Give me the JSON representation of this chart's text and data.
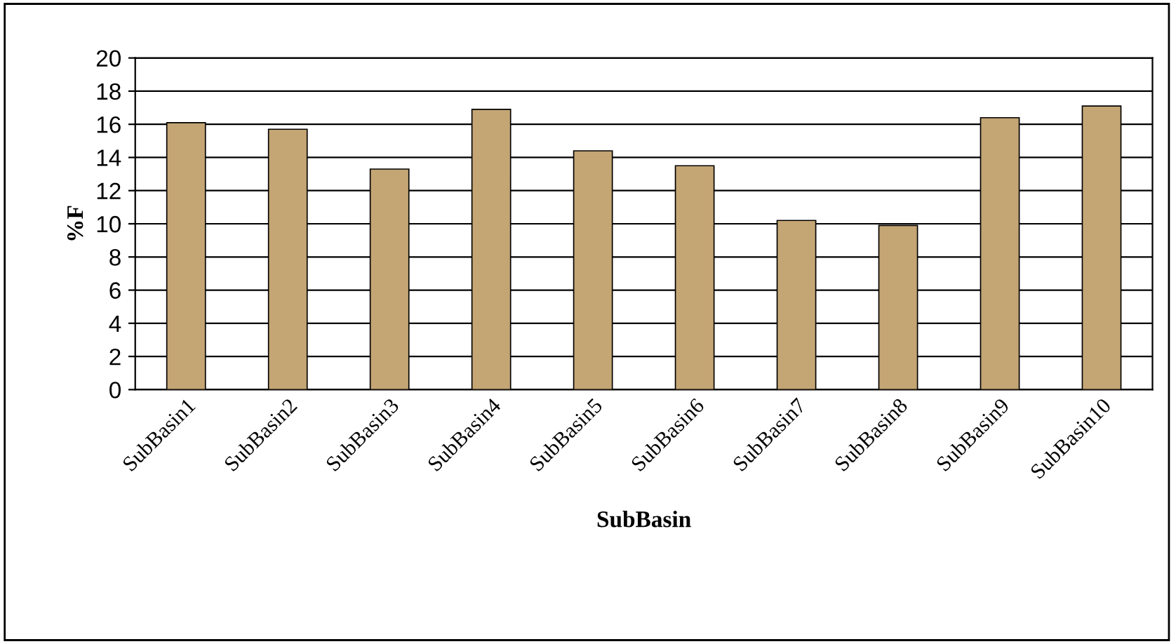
{
  "chart_data": {
    "type": "bar",
    "xlabel": "SubBasin",
    "ylabel": "%F",
    "categories": [
      "SubBasin1",
      "SubBasin2",
      "SubBasin3",
      "SubBasin4",
      "SubBasin5",
      "SubBasin6",
      "SubBasin7",
      "SubBasin8",
      "SubBasin9",
      "SubBasin10"
    ],
    "values": [
      16.1,
      15.7,
      13.3,
      16.9,
      14.4,
      13.5,
      10.2,
      9.9,
      16.4,
      17.1
    ],
    "color": "#c4a574",
    "ylim": [
      0,
      20
    ],
    "yticks": [
      0,
      2,
      4,
      6,
      8,
      10,
      12,
      14,
      16,
      18,
      20
    ],
    "grid": "y",
    "legend": false
  }
}
